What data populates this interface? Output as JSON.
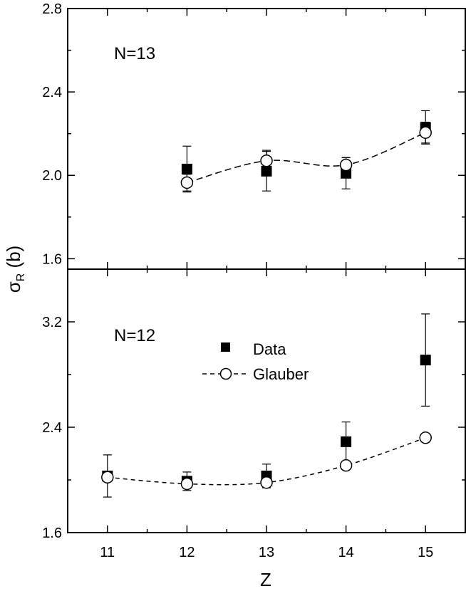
{
  "chart_data": [
    {
      "type": "scatter",
      "panel_label": "N=13",
      "ylim": [
        1.55,
        2.8
      ],
      "yticks": [
        "1.6",
        "2.0",
        "2.4",
        "2.8"
      ],
      "yticks_values": [
        1.6,
        2.0,
        2.4,
        2.8
      ],
      "xlim": [
        10.5,
        15.5
      ],
      "series": [
        {
          "name": "Data",
          "marker": "filled-square",
          "x": [
            12,
            13,
            14,
            15
          ],
          "y": [
            2.03,
            2.02,
            2.01,
            2.23
          ],
          "err": [
            0.11,
            0.095,
            0.075,
            0.08
          ]
        },
        {
          "name": "Glauber",
          "marker": "open-circle",
          "line": "dashed",
          "x": [
            12,
            13,
            14,
            15
          ],
          "y": [
            1.965,
            2.07,
            2.05,
            2.205
          ],
          "err": [
            0.04,
            0.05,
            0.035,
            0.05
          ]
        }
      ]
    },
    {
      "type": "scatter",
      "panel_label": "N=12",
      "ylim": [
        1.6,
        3.6
      ],
      "yticks": [
        "1.6",
        "2.4",
        "3.2"
      ],
      "yticks_values": [
        1.6,
        2.4,
        3.2
      ],
      "xlim": [
        10.5,
        15.5
      ],
      "series": [
        {
          "name": "Data",
          "marker": "filled-square",
          "x": [
            11,
            12,
            13,
            14,
            15
          ],
          "y": [
            2.03,
            1.99,
            2.03,
            2.29,
            2.91
          ],
          "err": [
            0.16,
            0.07,
            0.09,
            0.15,
            0.35
          ]
        },
        {
          "name": "Glauber",
          "marker": "open-circle",
          "line": "dashed",
          "x": [
            11,
            12,
            13,
            14,
            15
          ],
          "y": [
            2.02,
            1.97,
            1.98,
            2.11,
            2.32
          ],
          "err": [
            0,
            0,
            0,
            0,
            0
          ]
        }
      ]
    }
  ],
  "xaxis": {
    "label": "Z",
    "ticks": [
      "11",
      "12",
      "13",
      "14",
      "15"
    ],
    "tick_values": [
      11,
      12,
      13,
      14,
      15
    ]
  },
  "yaxis": {
    "label_main": "σ",
    "label_sub": "R",
    "label_unit": " (b)"
  },
  "legend": {
    "data_label": "Data",
    "glauber_label": "Glauber"
  }
}
